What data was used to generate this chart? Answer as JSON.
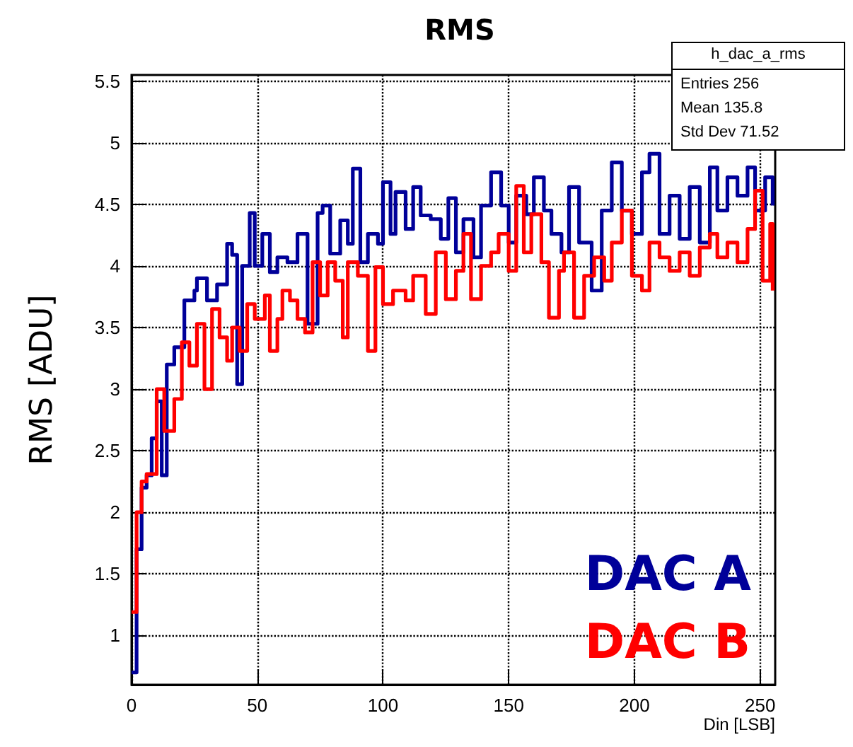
{
  "chart_data": {
    "type": "step",
    "title": "RMS",
    "xlabel": "Din [LSB]",
    "ylabel": "RMS [ADU]",
    "xlim": [
      0,
      256
    ],
    "xticks": [
      0,
      50,
      100,
      150,
      200,
      250
    ],
    "ylim": [
      0.6,
      5.55
    ],
    "yticks": [
      1,
      1.5,
      2,
      2.5,
      3,
      3.5,
      4,
      4.5,
      5,
      5.5
    ],
    "grid": true,
    "legend": "bottom right",
    "marker": "none",
    "line_style": "solid",
    "annotations": [
      "h_dac_a_rms",
      "Entries 256",
      "Mean 135.8",
      "Std Dev 71.52"
    ],
    "series": [
      {
        "name": "DAC A",
        "color": "#000099",
        "x": [
          0,
          2,
          4,
          6,
          8,
          10,
          12,
          14,
          17,
          21,
          25,
          26,
          30,
          34,
          38,
          40,
          42,
          44,
          47,
          49,
          52,
          55,
          58,
          62,
          66,
          70,
          74,
          76,
          79,
          83,
          86,
          88,
          91,
          94,
          98,
          100,
          103,
          105,
          109,
          112,
          115,
          119,
          123,
          126,
          129,
          132,
          136,
          139,
          143,
          147,
          150,
          153,
          157,
          160,
          164,
          167,
          171,
          174,
          178,
          183,
          187,
          191,
          195,
          199,
          203,
          206,
          210,
          214,
          218,
          222,
          226,
          230,
          233,
          237,
          241,
          245,
          248,
          252,
          255
        ],
        "values": [
          0.7,
          1.7,
          2.2,
          2.3,
          2.6,
          2.9,
          2.3,
          3.2,
          3.34,
          3.72,
          3.8,
          3.9,
          3.72,
          3.85,
          4.18,
          4.09,
          3.04,
          4.0,
          4.43,
          4.0,
          4.26,
          3.95,
          4.07,
          4.03,
          4.26,
          3.53,
          4.43,
          4.49,
          4.1,
          4.37,
          4.18,
          4.79,
          4.03,
          4.26,
          4.18,
          4.68,
          4.26,
          4.6,
          4.3,
          4.64,
          4.41,
          4.38,
          4.22,
          4.55,
          4.11,
          4.38,
          4.07,
          4.49,
          4.76,
          4.49,
          4.19,
          4.57,
          4.42,
          4.72,
          4.45,
          4.26,
          4.11,
          4.64,
          4.19,
          3.8,
          4.45,
          4.84,
          4.45,
          4.26,
          4.76,
          4.91,
          4.26,
          4.57,
          4.22,
          4.64,
          4.19,
          4.8,
          4.45,
          4.72,
          4.57,
          4.8,
          4.45,
          4.72,
          4.49
        ]
      },
      {
        "name": "DAC B",
        "color": "#ff0000",
        "x": [
          0,
          2,
          4,
          6,
          10,
          13,
          17,
          20,
          23,
          26,
          29,
          32,
          35,
          38,
          40,
          43,
          46,
          49,
          53,
          55,
          58,
          60,
          63,
          66,
          69,
          72,
          75,
          78,
          81,
          84,
          86,
          90,
          94,
          97,
          100,
          104,
          109,
          112,
          117,
          121,
          125,
          129,
          132,
          135,
          139,
          143,
          146,
          150,
          153,
          156,
          159,
          163,
          166,
          170,
          172,
          176,
          180,
          184,
          188,
          191,
          195,
          199,
          203,
          206,
          210,
          214,
          218,
          222,
          226,
          230,
          233,
          237,
          241,
          245,
          248,
          251,
          254,
          255
        ],
        "values": [
          1.19,
          2.0,
          2.25,
          2.31,
          3.0,
          2.66,
          2.92,
          3.38,
          3.19,
          3.53,
          3.0,
          3.65,
          3.42,
          3.23,
          3.5,
          3.31,
          3.69,
          3.57,
          3.76,
          3.31,
          3.57,
          3.8,
          3.72,
          3.57,
          3.46,
          4.03,
          3.76,
          4.03,
          3.88,
          3.42,
          4.03,
          3.92,
          3.31,
          3.99,
          3.69,
          3.8,
          3.72,
          3.92,
          3.61,
          4.11,
          3.73,
          3.96,
          4.26,
          3.73,
          4.0,
          4.11,
          4.26,
          3.96,
          4.65,
          4.11,
          4.42,
          4.03,
          3.58,
          3.96,
          4.11,
          3.58,
          3.92,
          4.07,
          3.88,
          4.19,
          4.45,
          3.92,
          3.8,
          4.19,
          4.07,
          3.96,
          4.11,
          3.92,
          4.15,
          4.26,
          4.07,
          4.19,
          4.03,
          4.3,
          4.61,
          3.88,
          4.34,
          3.8
        ]
      }
    ]
  }
}
